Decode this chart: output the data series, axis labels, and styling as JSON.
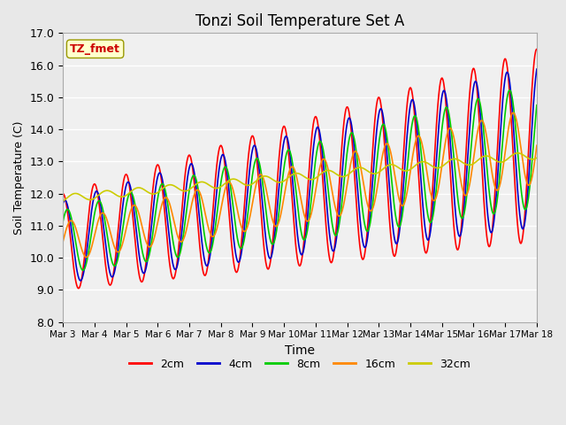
{
  "title": "Tonzi Soil Temperature Set A",
  "xlabel": "Time",
  "ylabel": "Soil Temperature (C)",
  "ylim": [
    8.0,
    17.0
  ],
  "yticks": [
    8.0,
    9.0,
    10.0,
    11.0,
    12.0,
    13.0,
    14.0,
    15.0,
    16.0,
    17.0
  ],
  "xtick_labels": [
    "Mar 3",
    "Mar 4",
    "Mar 5",
    "Mar 6",
    "Mar 7",
    "Mar 8",
    "Mar 9",
    "Mar 10",
    "Mar 11",
    "Mar 12",
    "Mar 13",
    "Mar 14",
    "Mar 15",
    "Mar 16",
    "Mar 17",
    "Mar 18"
  ],
  "annotation_text": "TZ_fmet",
  "annotation_color": "#cc0000",
  "annotation_bg": "#ffffcc",
  "annotation_border": "#999900",
  "colors": [
    "#ff0000",
    "#0000cc",
    "#00cc00",
    "#ff8800",
    "#cccc00"
  ],
  "lw": 1.2,
  "bg_color": "#e8e8e8",
  "plot_bg": "#f0f0f0",
  "grid_color": "#ffffff",
  "legend_labels": [
    "2cm",
    "4cm",
    "8cm",
    "16cm",
    "32cm"
  ]
}
